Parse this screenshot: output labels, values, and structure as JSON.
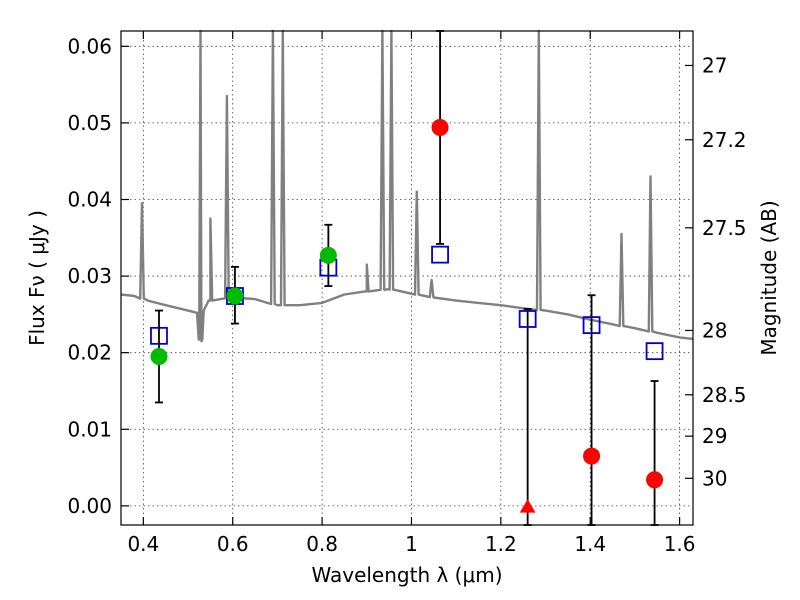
{
  "chart_data": {
    "type": "scatter",
    "title": "",
    "xlabel": "Wavelength  λ (μm)",
    "ylabel": "Flux  Fν  ( μJy )",
    "y2label": "Magnitude (AB)",
    "xlim": [
      0.35,
      1.63
    ],
    "ylim": [
      -0.0025,
      0.062
    ],
    "grid": true,
    "x_ticks": [
      0.4,
      0.6,
      0.8,
      1.0,
      1.2,
      1.4,
      1.6
    ],
    "x_tick_labels": [
      "0.4",
      "0.6",
      "0.8",
      "1",
      "1.2",
      "1.4",
      "1.6"
    ],
    "y_ticks": [
      0.0,
      0.01,
      0.02,
      0.03,
      0.04,
      0.05,
      0.06
    ],
    "y_tick_labels": [
      "0.00",
      "0.01",
      "0.02",
      "0.03",
      "0.04",
      "0.05",
      "0.06"
    ],
    "y2_ticks": [
      {
        "label": "27",
        "flux": 0.0575
      },
      {
        "label": "27.2",
        "flux": 0.0478
      },
      {
        "label": "27.5",
        "flux": 0.0363
      },
      {
        "label": "28",
        "flux": 0.0229
      },
      {
        "label": "28.5",
        "flux": 0.0145
      },
      {
        "label": "29",
        "flux": 0.0091
      },
      {
        "label": "30",
        "flux": 0.0036
      }
    ],
    "colors": {
      "model": "#808080",
      "model_photometry": "#0000cc",
      "detections": "#00bb00",
      "nondetections": "#ff0000",
      "errorbars": "#000000"
    },
    "model_spectrum": {
      "continuum": [
        [
          0.35,
          0.0276
        ],
        [
          0.38,
          0.0274
        ],
        [
          0.41,
          0.0268
        ],
        [
          0.45,
          0.0262
        ],
        [
          0.5,
          0.0255
        ],
        [
          0.52,
          0.0252
        ],
        [
          0.525,
          0.022
        ],
        [
          0.53,
          0.0215
        ],
        [
          0.535,
          0.0255
        ],
        [
          0.55,
          0.0268
        ],
        [
          0.6,
          0.0272
        ],
        [
          0.65,
          0.027
        ],
        [
          0.7,
          0.0262
        ],
        [
          0.75,
          0.0262
        ],
        [
          0.8,
          0.0265
        ],
        [
          0.85,
          0.0276
        ],
        [
          0.9,
          0.028
        ],
        [
          0.95,
          0.0283
        ],
        [
          1.0,
          0.0277
        ],
        [
          1.05,
          0.0272
        ],
        [
          1.1,
          0.0268
        ],
        [
          1.15,
          0.0265
        ],
        [
          1.2,
          0.0262
        ],
        [
          1.25,
          0.0258
        ],
        [
          1.3,
          0.0255
        ],
        [
          1.35,
          0.025
        ],
        [
          1.4,
          0.0243
        ],
        [
          1.45,
          0.0237
        ],
        [
          1.5,
          0.0232
        ],
        [
          1.55,
          0.0226
        ],
        [
          1.6,
          0.022
        ],
        [
          1.63,
          0.0218
        ]
      ],
      "lines": [
        {
          "x": 0.397,
          "y": 0.0395
        },
        {
          "x": 0.528,
          "y": 0.065
        },
        {
          "x": 0.55,
          "y": 0.0375
        },
        {
          "x": 0.587,
          "y": 0.0535
        },
        {
          "x": 0.69,
          "y": 0.065
        },
        {
          "x": 0.712,
          "y": 0.065
        },
        {
          "x": 0.9,
          "y": 0.0315
        },
        {
          "x": 0.935,
          "y": 0.065
        },
        {
          "x": 0.955,
          "y": 0.065
        },
        {
          "x": 1.012,
          "y": 0.041
        },
        {
          "x": 1.045,
          "y": 0.0295
        },
        {
          "x": 1.285,
          "y": 0.065
        },
        {
          "x": 1.47,
          "y": 0.0355
        },
        {
          "x": 1.535,
          "y": 0.043
        }
      ]
    },
    "series": [
      {
        "marker": "square",
        "points": [
          {
            "x": 0.435,
            "y": 0.0222
          },
          {
            "x": 0.605,
            "y": 0.0274
          },
          {
            "x": 0.814,
            "y": 0.0311
          },
          {
            "x": 1.064,
            "y": 0.0328
          },
          {
            "x": 1.26,
            "y": 0.0244
          },
          {
            "x": 1.403,
            "y": 0.0236
          },
          {
            "x": 1.544,
            "y": 0.0202
          }
        ]
      },
      {
        "marker": "circle",
        "points": [
          {
            "x": 0.435,
            "y": 0.0195,
            "yerr_low": 0.0135,
            "yerr_high": 0.0255
          },
          {
            "x": 0.605,
            "y": 0.0274,
            "yerr_low": 0.0238,
            "yerr_high": 0.0312
          },
          {
            "x": 0.814,
            "y": 0.0327,
            "yerr_low": 0.0287,
            "yerr_high": 0.0367
          }
        ]
      },
      {
        "marker": "circle",
        "points": [
          {
            "x": 1.064,
            "y": 0.0494,
            "yerr_low": 0.0342,
            "yerr_high": 0.062
          },
          {
            "x": 1.403,
            "y": 0.0065,
            "yerr_low": -0.0025,
            "yerr_high": 0.0275
          },
          {
            "x": 1.544,
            "y": 0.0034,
            "yerr_low": -0.0025,
            "yerr_high": 0.0163
          }
        ]
      },
      {
        "marker": "triangle",
        "points": [
          {
            "x": 1.26,
            "y": -0.0003,
            "yerr_low": -0.0025,
            "yerr_high": 0.0257
          }
        ]
      }
    ]
  }
}
